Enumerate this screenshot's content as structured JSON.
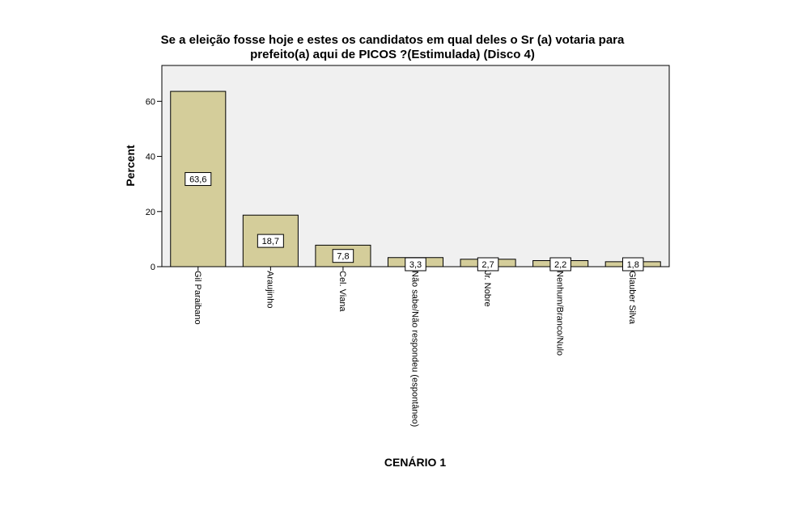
{
  "chart_data": {
    "type": "bar",
    "title_lines": [
      "Se a eleição fosse hoje e estes os candidatos em qual deles o Sr (a) votaria para",
      "prefeito(a) aqui de PICOS ?(Estimulada)  (Disco 4)"
    ],
    "xlabel": "CENÁRIO 1",
    "ylabel": "Percent",
    "ylim": [
      0,
      73
    ],
    "yticks": [
      0,
      20,
      40,
      60
    ],
    "categories": [
      "Gil Paraibano",
      "Araujinho",
      "Cel. Viana",
      "Não sabe/Não respondeu (espontâneo)",
      "Jr. Nobre",
      "Nenhum/Branco/Nulo",
      "Glauber Silva"
    ],
    "values": [
      63.6,
      18.7,
      7.8,
      3.3,
      2.7,
      2.2,
      1.8
    ],
    "data_labels": [
      "63,6",
      "18,7",
      "7,8",
      "3,3",
      "2,7",
      "2,2",
      "1,8"
    ],
    "colors": {
      "bar_fill": "#d4cd9a",
      "bar_stroke": "#000000",
      "plot_bg": "#f0f0f0",
      "plot_border": "#000000"
    },
    "grid": false,
    "legend": "none"
  }
}
